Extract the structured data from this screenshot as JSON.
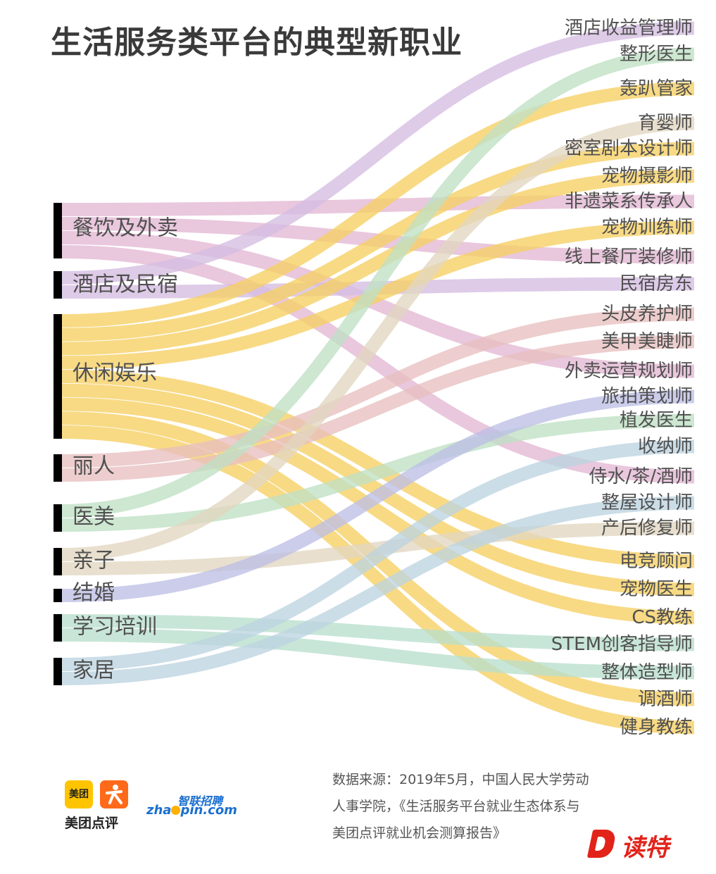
{
  "title": "生活服务类平台的典型新职业",
  "source_lines": [
    "数据来源：2019年5月，中国人民大学劳动",
    "人事学院，《生活服务平台就业生态体系与",
    "美团点评就业机会测算报告》"
  ],
  "logos": {
    "meituan_badge": "美团",
    "meituan_dianping": "美团点评",
    "zhaopin_cn": "智联招聘",
    "zhaopin_en_1": "zha",
    "zhaopin_en_2": "pin.com",
    "duote": "读特"
  },
  "colors": {
    "purple": "#d5bde2",
    "green": "#bfe0c4",
    "yellow": "#f6cf63",
    "tan": "#e2d6c0",
    "pink": "#e3b7d3",
    "rose": "#e8bfbf",
    "blue": "#bdbfe6",
    "lightblue": "#bdd4e0",
    "mint": "#b9dfcd",
    "bar": "#000000",
    "text": "#555555"
  },
  "chart_data": {
    "type": "sankey",
    "sources": [
      "餐饮及外卖",
      "酒店及民宿",
      "休闲娱乐",
      "丽人",
      "医美",
      "亲子",
      "结婚",
      "学习培训",
      "家居"
    ],
    "targets": [
      "酒店收益管理师",
      "整形医生",
      "轰趴管家",
      "育婴师",
      "密室剧本设计师",
      "宠物摄影师",
      "非遗菜系传承人",
      "宠物训练师",
      "线上餐厅装修师",
      "民宿房东",
      "头皮养护师",
      "美甲美睫师",
      "外卖运营规划师",
      "旅拍策划师",
      "植发医生",
      "收纳师",
      "侍水/茶/酒师",
      "整屋设计师",
      "产后修复师",
      "电竞顾问",
      "宠物医生",
      "CS教练",
      "STEM创客指导师",
      "整体造型师",
      "调酒师",
      "健身教练"
    ],
    "links": [
      {
        "source": "餐饮及外卖",
        "target": "非遗菜系传承人",
        "color": "pink"
      },
      {
        "source": "餐饮及外卖",
        "target": "线上餐厅装修师",
        "color": "pink"
      },
      {
        "source": "餐饮及外卖",
        "target": "外卖运营规划师",
        "color": "pink"
      },
      {
        "source": "餐饮及外卖",
        "target": "侍水/茶/酒师",
        "color": "pink"
      },
      {
        "source": "酒店及民宿",
        "target": "酒店收益管理师",
        "color": "purple"
      },
      {
        "source": "酒店及民宿",
        "target": "民宿房东",
        "color": "purple"
      },
      {
        "source": "休闲娱乐",
        "target": "轰趴管家",
        "color": "yellow"
      },
      {
        "source": "休闲娱乐",
        "target": "密室剧本设计师",
        "color": "yellow"
      },
      {
        "source": "休闲娱乐",
        "target": "宠物摄影师",
        "color": "yellow"
      },
      {
        "source": "休闲娱乐",
        "target": "宠物训练师",
        "color": "yellow"
      },
      {
        "source": "休闲娱乐",
        "target": "电竞顾问",
        "color": "yellow"
      },
      {
        "source": "休闲娱乐",
        "target": "宠物医生",
        "color": "yellow"
      },
      {
        "source": "休闲娱乐",
        "target": "CS教练",
        "color": "yellow"
      },
      {
        "source": "休闲娱乐",
        "target": "调酒师",
        "color": "yellow"
      },
      {
        "source": "休闲娱乐",
        "target": "健身教练",
        "color": "yellow"
      },
      {
        "source": "丽人",
        "target": "头皮养护师",
        "color": "rose"
      },
      {
        "source": "丽人",
        "target": "美甲美睫师",
        "color": "rose"
      },
      {
        "source": "医美",
        "target": "整形医生",
        "color": "green"
      },
      {
        "source": "医美",
        "target": "植发医生",
        "color": "green"
      },
      {
        "source": "亲子",
        "target": "育婴师",
        "color": "tan"
      },
      {
        "source": "亲子",
        "target": "产后修复师",
        "color": "tan"
      },
      {
        "source": "结婚",
        "target": "旅拍策划师",
        "color": "blue"
      },
      {
        "source": "学习培训",
        "target": "STEM创客指导师",
        "color": "mint"
      },
      {
        "source": "学习培训",
        "target": "整体造型师",
        "color": "mint"
      },
      {
        "source": "家居",
        "target": "收纳师",
        "color": "lightblue"
      },
      {
        "source": "家居",
        "target": "整屋设计师",
        "color": "lightblue"
      }
    ]
  }
}
